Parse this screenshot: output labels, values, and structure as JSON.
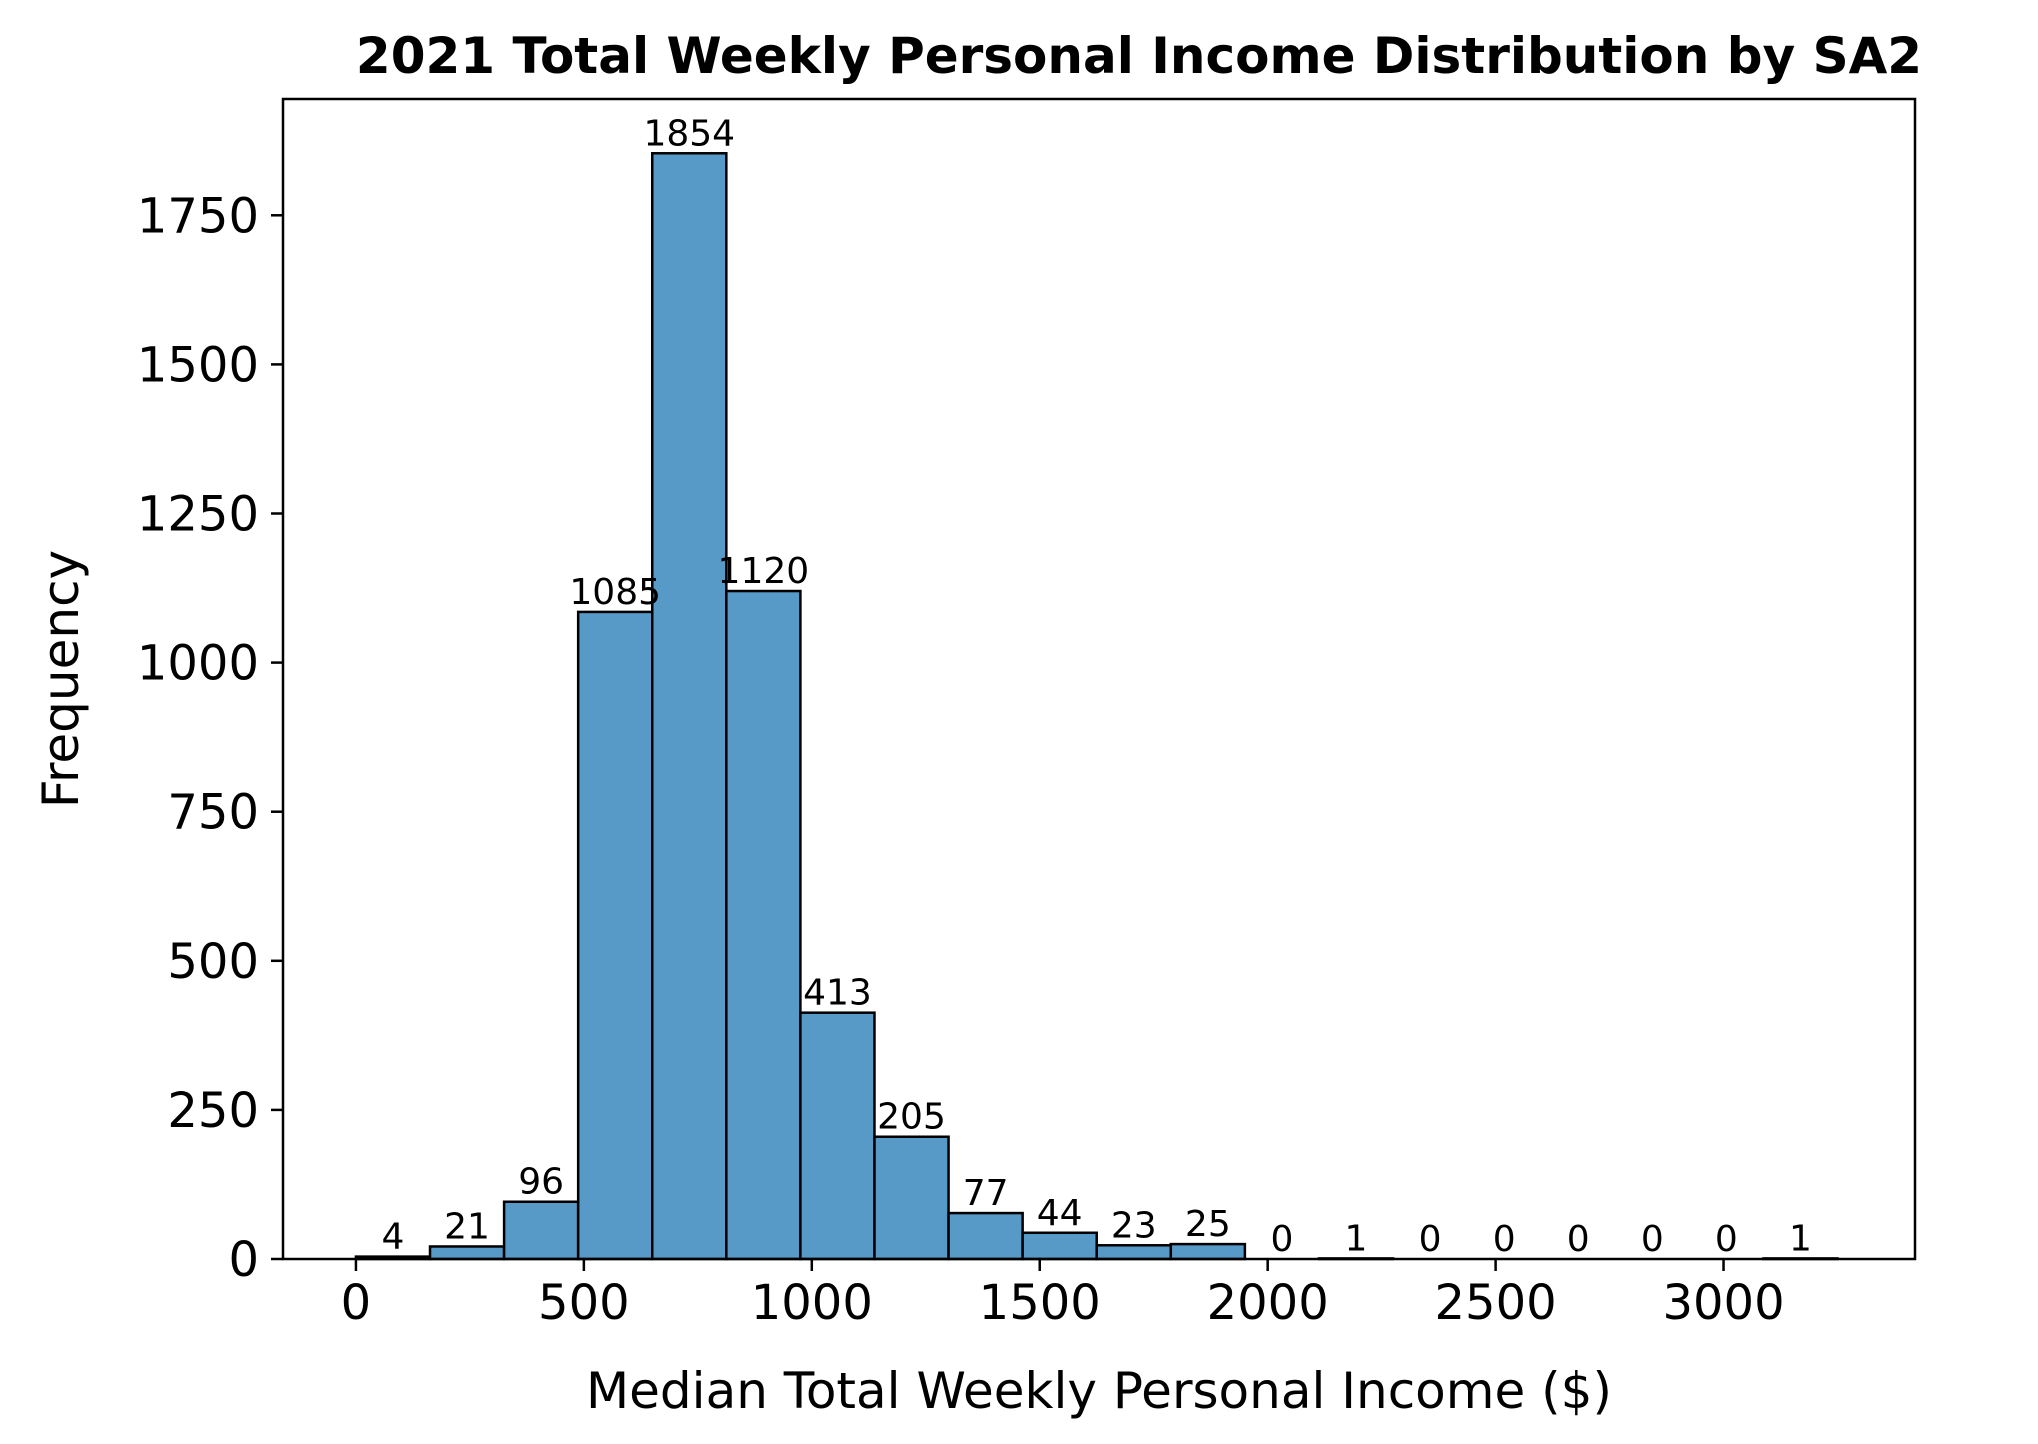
{
  "chart_data": {
    "type": "bar",
    "title": "2021 Total Weekly Personal Income Distribution by SA2",
    "xlabel": "Median Total Weekly Personal Income ($)",
    "ylabel": "Frequency",
    "xlim": [
      -160,
      3420
    ],
    "ylim": [
      0,
      1945
    ],
    "xticks": [
      0,
      500,
      1000,
      1500,
      2000,
      2500,
      3000
    ],
    "yticks": [
      0,
      250,
      500,
      750,
      1000,
      1250,
      1500,
      1750
    ],
    "bin_edges": [
      0,
      162.5,
      325,
      487.5,
      650,
      812.5,
      975,
      1137.5,
      1300,
      1462.5,
      1625,
      1787.5,
      1950,
      2112.5,
      2275,
      2437.5,
      2600,
      2762.5,
      2925,
      3087.5,
      3250
    ],
    "values": [
      4,
      21,
      96,
      1085,
      1854,
      1120,
      413,
      205,
      77,
      44,
      23,
      25,
      0,
      1,
      0,
      0,
      0,
      0,
      0,
      1
    ],
    "bar_color": "#5799c7",
    "edge_color": "#000000",
    "grid": false,
    "legend": "none"
  }
}
